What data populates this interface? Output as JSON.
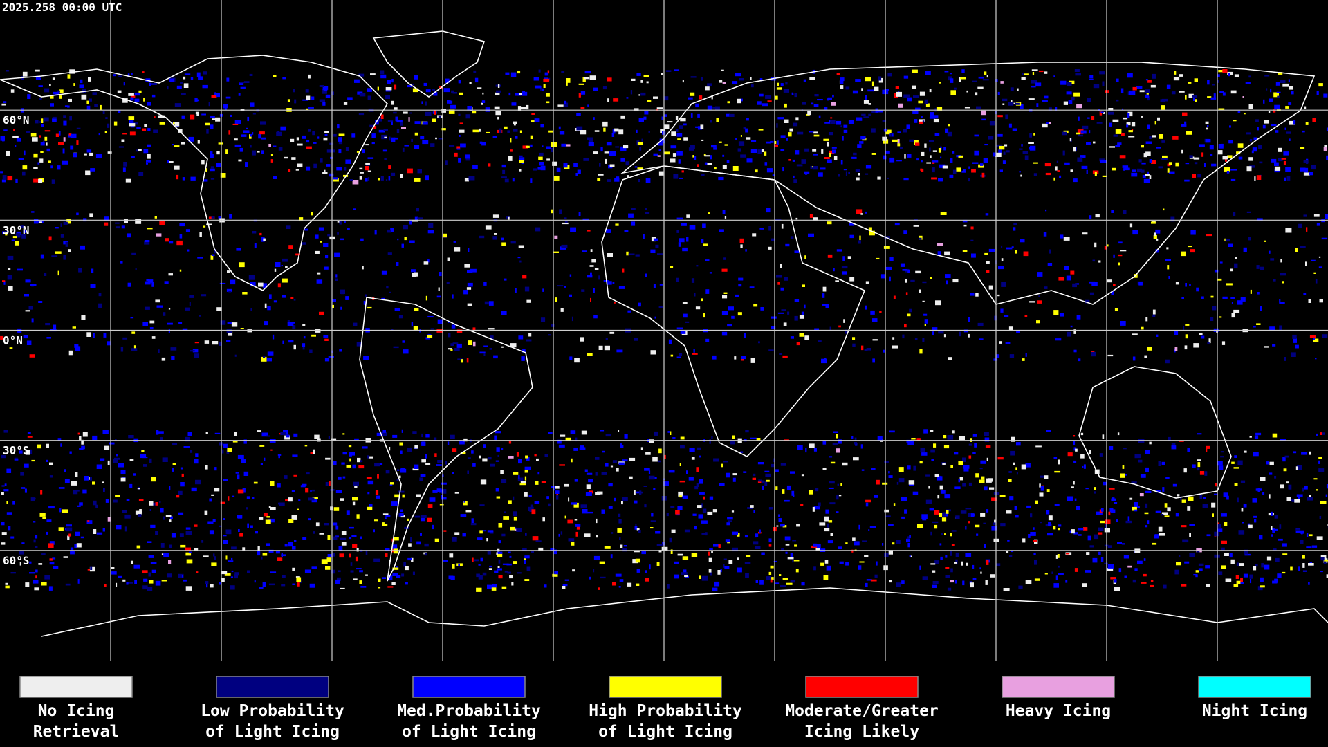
{
  "header": {
    "timestamp": "2025.258 00:00 UTC"
  },
  "latitude_labels": [
    "60°N",
    "30°N",
    "0°N",
    "30°S",
    "60°S"
  ],
  "legend": [
    {
      "lines": [
        "No Icing",
        "Retrieval"
      ],
      "color": "#eeeeee"
    },
    {
      "lines": [
        "Low Probability",
        "of Light Icing"
      ],
      "color": "#000080"
    },
    {
      "lines": [
        "Med.Probability",
        "of Light Icing"
      ],
      "color": "#0000ff"
    },
    {
      "lines": [
        "High Probability",
        "of Light Icing"
      ],
      "color": "#ffff00"
    },
    {
      "lines": [
        "Moderate/Greater",
        "Icing Likely"
      ],
      "color": "#ff0000"
    },
    {
      "lines": [
        "Heavy Icing"
      ],
      "color": "#e8a0e0"
    },
    {
      "lines": [
        "Night Icing"
      ],
      "color": "#00ffff"
    }
  ]
}
